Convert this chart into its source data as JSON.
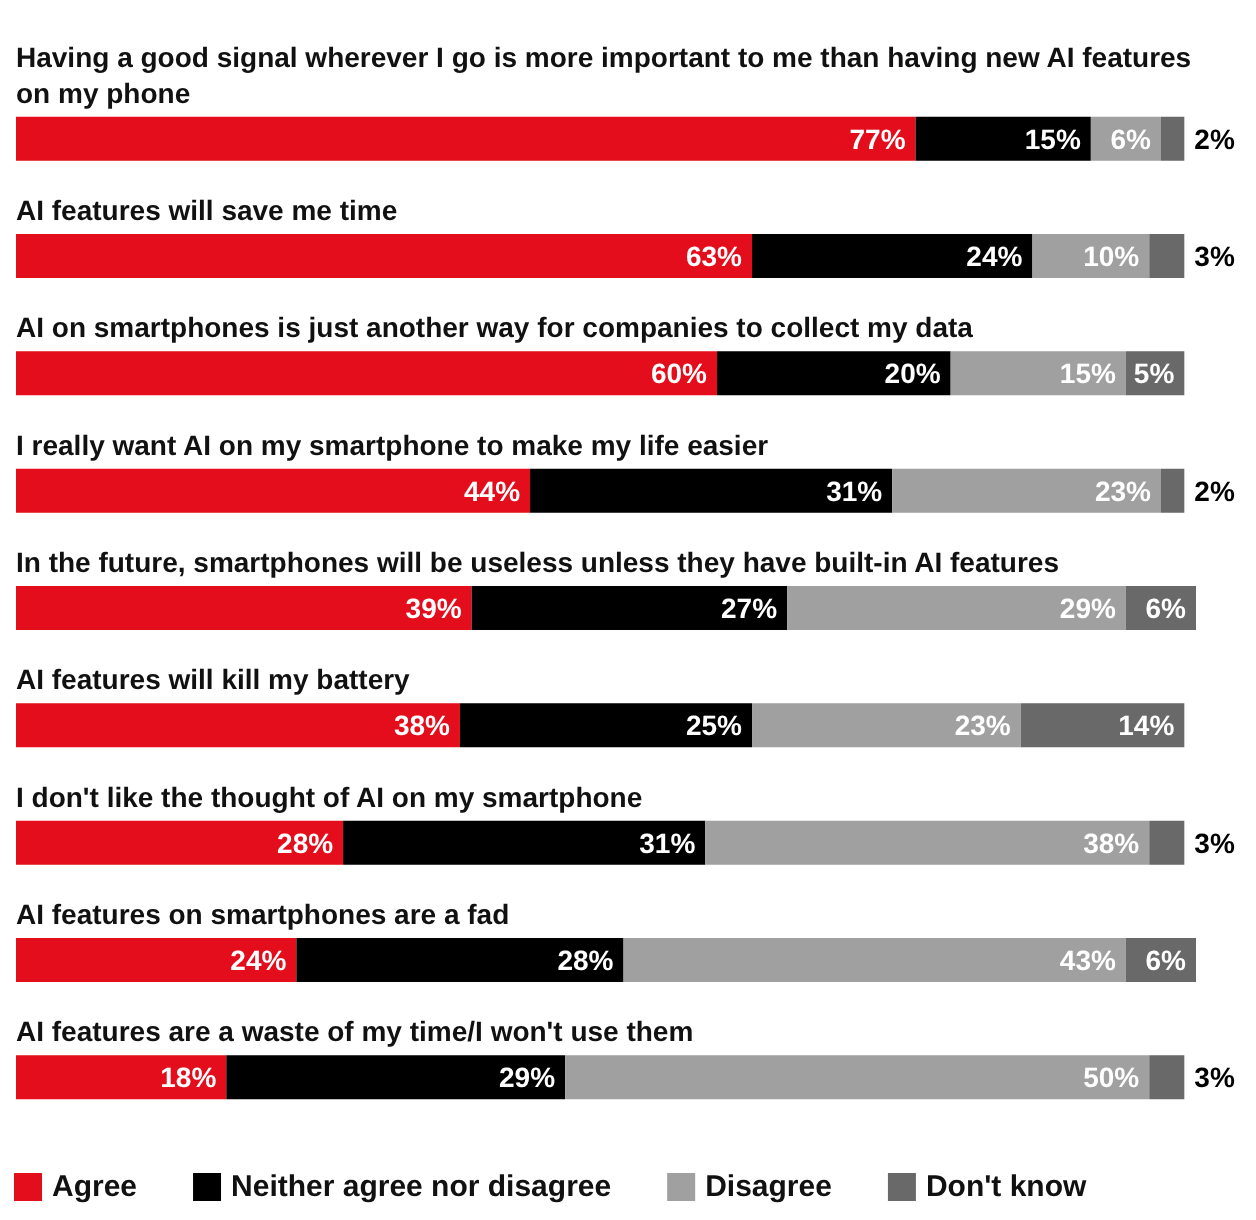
{
  "chart_data": {
    "type": "bar",
    "orientation": "horizontal",
    "stacked": true,
    "categories": [
      "Having a good signal wherever I go is more important to me than having new AI features on my phone",
      "AI features will save me time",
      "AI on smartphones is just another way for companies to collect my data",
      "I really want AI on my smartphone to make my life easier",
      "In the future, smartphones will be useless unless they have built-in AI features",
      "AI features will kill my battery",
      "I don't like the thought of AI on my smartphone",
      "AI features on smartphones are a fad",
      "AI features are a waste of my time/I won't use them"
    ],
    "series": [
      {
        "name": "Agree",
        "color": "#e30d1b",
        "values": [
          77,
          63,
          60,
          44,
          39,
          38,
          28,
          24,
          18
        ],
        "value_labels": [
          "77%",
          "63%",
          "60%",
          "44%",
          "39%",
          "38%",
          "28%",
          "24%",
          "18%"
        ]
      },
      {
        "name": "Neither agree nor disagree",
        "color": "#000000",
        "values": [
          15,
          24,
          20,
          31,
          27,
          25,
          31,
          28,
          29
        ],
        "value_labels": [
          "15%",
          "24%",
          "20%",
          "31%",
          "27%",
          "25%",
          "31%",
          "28%",
          "29%"
        ]
      },
      {
        "name": "Disagree",
        "color": "#a0a0a0",
        "values": [
          6,
          10,
          15,
          23,
          29,
          23,
          38,
          43,
          50
        ],
        "value_labels": [
          "6%",
          "10%",
          "15%",
          "23%",
          "29%",
          "23%",
          "38%",
          "43%",
          "50%"
        ]
      },
      {
        "name": "Don't know",
        "color": "#696969",
        "values": [
          2,
          3,
          5,
          2,
          6,
          14,
          3,
          6,
          3
        ],
        "value_labels": [
          "2%",
          "3%",
          "5%",
          "2%",
          "6%",
          "14%",
          "3%",
          "6%",
          "3%"
        ]
      }
    ],
    "xlim": [
      0,
      101
    ],
    "tick_labels": "y",
    "grid": false,
    "legend": "bottom left"
  }
}
